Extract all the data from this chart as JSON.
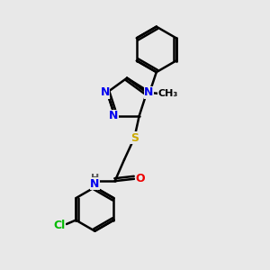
{
  "bg_color": "#e8e8e8",
  "bond_color": "#000000",
  "bond_width": 1.8,
  "atom_colors": {
    "N": "#0000ee",
    "O": "#ee0000",
    "S": "#ccaa00",
    "Cl": "#00bb00",
    "H": "#555555",
    "C": "#000000"
  },
  "font_size": 9,
  "fig_size": [
    3.0,
    3.0
  ],
  "dpi": 100,
  "xlim": [
    0,
    10
  ],
  "ylim": [
    0,
    10
  ]
}
